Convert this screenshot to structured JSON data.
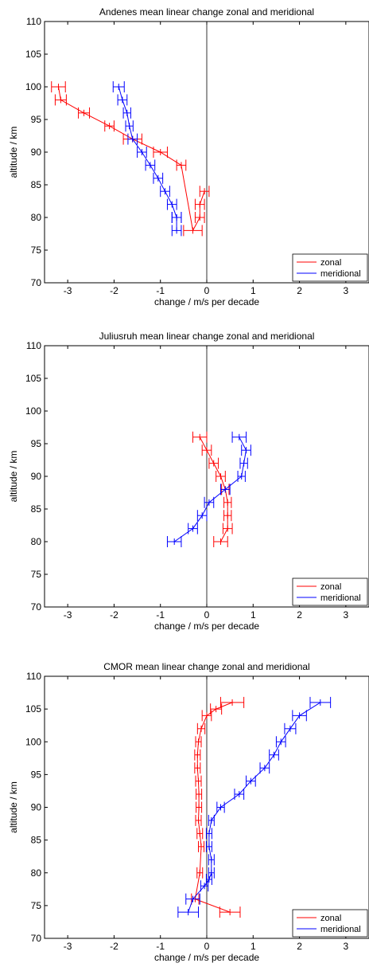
{
  "colors": {
    "zonal": "#ff0000",
    "meridional": "#0000ff",
    "axis": "#000000",
    "zero_line": "#000000"
  },
  "chart_data": [
    {
      "type": "line",
      "title": "Andenes mean linear change zonal and meridional",
      "xlabel": "change / m/s per decade",
      "ylabel": "altitude / km",
      "xlim": [
        -3.5,
        3.5
      ],
      "ylim": [
        70,
        110
      ],
      "xticks": [
        -3,
        -2,
        -1,
        0,
        1,
        2,
        3
      ],
      "yticks": [
        70,
        75,
        80,
        85,
        90,
        95,
        100,
        105,
        110
      ],
      "legend_position": "bottom-right",
      "series": [
        {
          "name": "zonal",
          "color": "#ff0000",
          "x": [
            -0.05,
            -0.15,
            -0.15,
            -0.3,
            -0.55,
            -1.0,
            -1.6,
            -2.1,
            -2.65,
            -3.15,
            -3.2
          ],
          "y": [
            84,
            82,
            80,
            78,
            88,
            90,
            92,
            94,
            96,
            98,
            100
          ],
          "err": [
            0.1,
            0.1,
            0.1,
            0.2,
            0.1,
            0.15,
            0.2,
            0.1,
            0.12,
            0.12,
            0.15
          ]
        },
        {
          "name": "meridional",
          "color": "#0000ff",
          "x": [
            -1.9,
            -1.82,
            -1.72,
            -1.67,
            -1.6,
            -1.4,
            -1.22,
            -1.05,
            -0.9,
            -0.75,
            -0.65,
            -0.65,
            -0.65
          ],
          "y": [
            100,
            98,
            96,
            94,
            92,
            90,
            88,
            86,
            84,
            82,
            80,
            80,
            78
          ],
          "err": [
            0.12,
            0.1,
            0.08,
            0.08,
            0.1,
            0.1,
            0.1,
            0.1,
            0.1,
            0.1,
            0.1,
            0.1,
            0.1
          ]
        }
      ]
    },
    {
      "type": "line",
      "title": "Juliusruh mean linear change zonal and meridional",
      "xlabel": "change / m/s per decade",
      "ylabel": "altitude / km",
      "xlim": [
        -3.5,
        3.5
      ],
      "ylim": [
        70,
        110
      ],
      "xticks": [
        -3,
        -2,
        -1,
        0,
        1,
        2,
        3
      ],
      "yticks": [
        70,
        75,
        80,
        85,
        90,
        95,
        100,
        105,
        110
      ],
      "legend_position": "bottom-right",
      "series": [
        {
          "name": "zonal",
          "color": "#ff0000",
          "x": [
            -0.15,
            0.0,
            0.15,
            0.3,
            0.4,
            0.45,
            0.45,
            0.45,
            0.3
          ],
          "y": [
            96,
            94,
            92,
            90,
            88,
            86,
            84,
            82,
            80
          ],
          "err": [
            0.15,
            0.1,
            0.1,
            0.1,
            0.08,
            0.08,
            0.08,
            0.1,
            0.15
          ]
        },
        {
          "name": "meridional",
          "color": "#0000ff",
          "x": [
            0.7,
            0.85,
            0.8,
            0.75,
            0.4,
            0.05,
            -0.1,
            -0.3,
            -0.7
          ],
          "y": [
            96,
            94,
            92,
            90,
            88,
            86,
            84,
            82,
            80
          ],
          "err": [
            0.15,
            0.1,
            0.08,
            0.08,
            0.1,
            0.1,
            0.1,
            0.1,
            0.15
          ]
        }
      ]
    },
    {
      "type": "line",
      "title": "CMOR mean linear change zonal and meridional",
      "xlabel": "change / m/s per decade",
      "ylabel": "altitude / km",
      "xlim": [
        -3.5,
        3.5
      ],
      "ylim": [
        70,
        110
      ],
      "xticks": [
        -3,
        -2,
        -1,
        0,
        1,
        2,
        3
      ],
      "yticks": [
        70,
        75,
        80,
        85,
        90,
        95,
        100,
        105,
        110
      ],
      "legend_position": "bottom-right",
      "series": [
        {
          "name": "zonal",
          "color": "#ff0000",
          "x": [
            0.55,
            0.2,
            0.0,
            -0.12,
            -0.18,
            -0.2,
            -0.2,
            -0.18,
            -0.17,
            -0.17,
            -0.18,
            -0.15,
            -0.12,
            -0.15,
            -0.25,
            0.5
          ],
          "y": [
            106,
            105,
            104,
            102,
            100,
            98,
            96,
            94,
            92,
            90,
            88,
            86,
            84,
            80,
            76,
            74
          ],
          "err": [
            0.25,
            0.12,
            0.1,
            0.08,
            0.06,
            0.06,
            0.06,
            0.06,
            0.06,
            0.06,
            0.06,
            0.06,
            0.06,
            0.06,
            0.08,
            0.22
          ]
        },
        {
          "name": "meridional",
          "color": "#0000ff",
          "x": [
            2.45,
            2.0,
            1.8,
            1.6,
            1.45,
            1.25,
            0.95,
            0.7,
            0.3,
            0.1,
            0.05,
            0.05,
            0.1,
            0.1,
            0.05,
            -0.05,
            -0.3,
            -0.4
          ],
          "y": [
            106,
            104,
            102,
            100,
            98,
            96,
            94,
            92,
            90,
            88,
            86,
            84,
            82,
            80,
            79,
            78,
            76,
            74
          ],
          "err": [
            0.22,
            0.15,
            0.12,
            0.1,
            0.1,
            0.1,
            0.1,
            0.1,
            0.08,
            0.06,
            0.06,
            0.06,
            0.06,
            0.06,
            0.06,
            0.08,
            0.15,
            0.22
          ]
        }
      ]
    }
  ]
}
